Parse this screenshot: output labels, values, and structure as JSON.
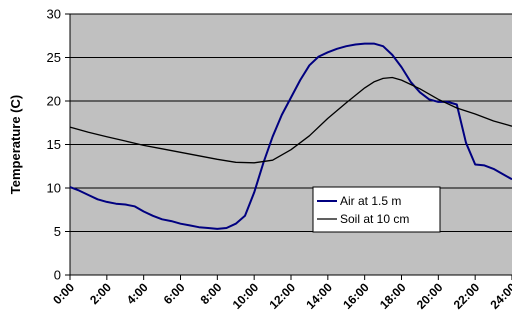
{
  "chart_data": {
    "type": "line",
    "xlabel": "",
    "ylabel": "Temperature (C)",
    "ylim": [
      0,
      30
    ],
    "xlim": [
      0,
      24
    ],
    "y_ticks": [
      0,
      5,
      10,
      15,
      20,
      25,
      30
    ],
    "x_ticks": [
      "0:00",
      "2:00",
      "4:00",
      "6:00",
      "8:00",
      "10:00",
      "12:00",
      "14:00",
      "16:00",
      "18:00",
      "20:00",
      "22:00",
      "24:00"
    ],
    "grid": true,
    "plot_background": "#c0c0c0",
    "legend": "center-right",
    "series": [
      {
        "name": "Air at 1.5 m",
        "color": "#000080",
        "x": [
          0,
          0.5,
          1,
          1.5,
          2,
          2.5,
          3,
          3.5,
          4,
          4.5,
          5,
          5.5,
          6,
          6.5,
          7,
          7.5,
          8,
          8.5,
          9,
          9.5,
          10,
          10.5,
          11,
          11.5,
          12,
          12.5,
          13,
          13.5,
          14,
          14.5,
          15,
          15.5,
          16,
          16.5,
          17,
          17.5,
          18,
          18.5,
          19,
          19.5,
          20,
          20.5,
          21,
          21.5,
          22,
          22.5,
          23,
          23.5,
          24
        ],
        "y": [
          10.1,
          9.7,
          9.2,
          8.7,
          8.4,
          8.2,
          8.1,
          7.9,
          7.3,
          6.8,
          6.4,
          6.2,
          5.9,
          5.7,
          5.5,
          5.4,
          5.3,
          5.4,
          5.9,
          6.8,
          9.5,
          12.9,
          15.9,
          18.4,
          20.4,
          22.4,
          24.1,
          25.1,
          25.6,
          26.0,
          26.3,
          26.5,
          26.6,
          26.6,
          26.3,
          25.3,
          23.9,
          22.2,
          21.0,
          20.2,
          19.9,
          19.9,
          19.6,
          15.2,
          12.7,
          12.6,
          12.2,
          11.6,
          11.0
        ]
      },
      {
        "name": "Soil at 10 cm",
        "color": "#000000",
        "x": [
          0,
          1,
          2,
          3,
          4,
          5,
          6,
          7,
          8,
          9,
          10,
          11,
          12,
          13,
          14,
          15,
          16,
          16.5,
          17,
          17.5,
          18,
          19,
          20,
          21,
          22,
          23,
          24
        ],
        "y": [
          17.0,
          16.4,
          15.9,
          15.4,
          14.9,
          14.5,
          14.1,
          13.7,
          13.3,
          12.95,
          12.9,
          13.2,
          14.4,
          16.0,
          18.0,
          19.8,
          21.5,
          22.2,
          22.6,
          22.7,
          22.4,
          21.4,
          20.2,
          19.2,
          18.5,
          17.7,
          17.1
        ]
      }
    ]
  }
}
